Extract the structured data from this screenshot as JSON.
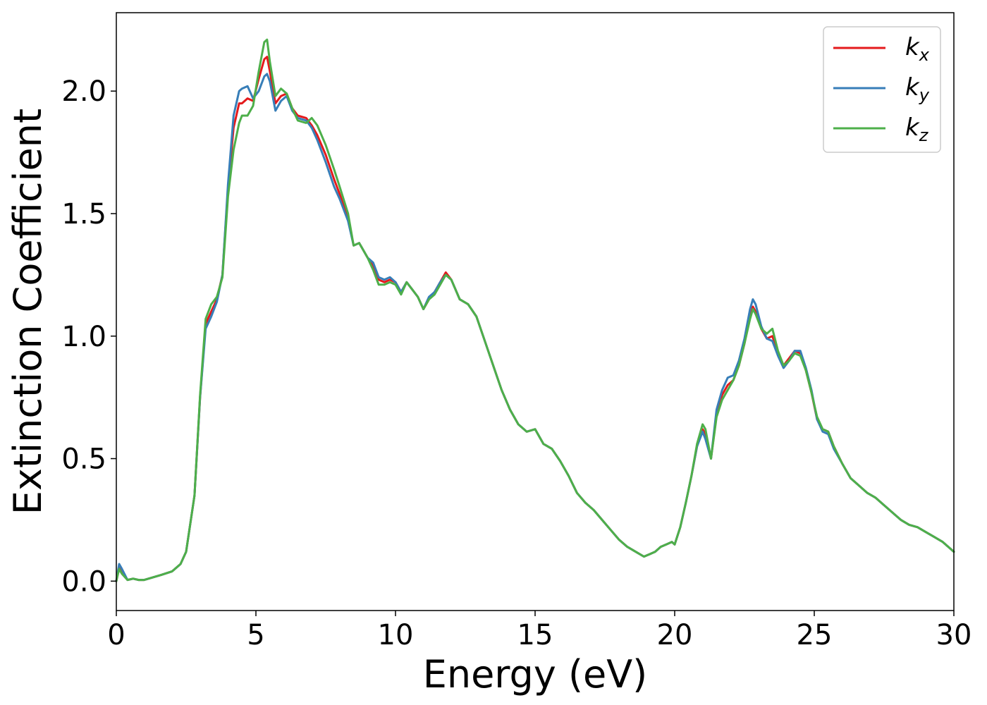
{
  "chart_data": {
    "type": "line",
    "title": "",
    "xlabel": "Energy (eV)",
    "ylabel": "Extinction Coefficient",
    "xlim": [
      0,
      30
    ],
    "ylim": [
      -0.12,
      2.32
    ],
    "xticks": [
      0,
      5,
      10,
      15,
      20,
      25,
      30
    ],
    "xtick_labels": [
      "0",
      "5",
      "10",
      "15",
      "20",
      "25",
      "30"
    ],
    "yticks": [
      0.0,
      0.5,
      1.0,
      1.5,
      2.0
    ],
    "ytick_labels": [
      "0.0",
      "0.5",
      "1.0",
      "1.5",
      "2.0"
    ],
    "grid": false,
    "legend_position": "top-right",
    "x": [
      0.0,
      0.1,
      0.2,
      0.4,
      0.6,
      0.8,
      1.0,
      1.3,
      1.6,
      2.0,
      2.3,
      2.5,
      2.8,
      3.0,
      3.2,
      3.4,
      3.6,
      3.8,
      4.0,
      4.2,
      4.4,
      4.5,
      4.7,
      4.9,
      5.1,
      5.3,
      5.4,
      5.5,
      5.7,
      5.9,
      6.1,
      6.3,
      6.5,
      6.8,
      7.0,
      7.2,
      7.5,
      7.8,
      8.0,
      8.3,
      8.5,
      8.7,
      8.8,
      9.0,
      9.2,
      9.4,
      9.6,
      9.8,
      10.0,
      10.2,
      10.4,
      10.6,
      10.8,
      11.0,
      11.2,
      11.4,
      11.6,
      11.8,
      12.0,
      12.3,
      12.6,
      12.9,
      13.2,
      13.5,
      13.8,
      14.1,
      14.4,
      14.7,
      15.0,
      15.3,
      15.6,
      15.9,
      16.2,
      16.5,
      16.8,
      17.1,
      17.4,
      17.7,
      18.0,
      18.3,
      18.6,
      18.9,
      19.1,
      19.3,
      19.5,
      19.7,
      19.9,
      20.0,
      20.2,
      20.4,
      20.6,
      20.8,
      21.0,
      21.1,
      21.3,
      21.5,
      21.7,
      21.9,
      22.1,
      22.3,
      22.5,
      22.7,
      22.8,
      22.9,
      23.1,
      23.3,
      23.5,
      23.7,
      23.9,
      24.1,
      24.3,
      24.5,
      24.7,
      24.9,
      25.1,
      25.3,
      25.5,
      25.7,
      26.0,
      26.3,
      26.6,
      26.9,
      27.2,
      27.5,
      27.8,
      28.1,
      28.4,
      28.7,
      29.0,
      29.3,
      29.6,
      30.0
    ],
    "series": [
      {
        "name": "k_x",
        "color": "#e41a1c",
        "values": [
          0.0,
          0.06,
          0.04,
          0.005,
          0.01,
          0.005,
          0.005,
          0.015,
          0.025,
          0.04,
          0.07,
          0.12,
          0.35,
          0.75,
          1.05,
          1.1,
          1.15,
          1.25,
          1.6,
          1.85,
          1.95,
          1.95,
          1.97,
          1.96,
          2.05,
          2.13,
          2.14,
          2.08,
          1.95,
          1.98,
          1.99,
          1.93,
          1.9,
          1.89,
          1.86,
          1.82,
          1.74,
          1.64,
          1.58,
          1.48,
          1.37,
          1.38,
          1.36,
          1.32,
          1.29,
          1.23,
          1.22,
          1.23,
          1.22,
          1.18,
          1.22,
          1.19,
          1.16,
          1.11,
          1.15,
          1.18,
          1.22,
          1.26,
          1.23,
          1.15,
          1.13,
          1.08,
          0.98,
          0.88,
          0.78,
          0.7,
          0.64,
          0.61,
          0.62,
          0.56,
          0.54,
          0.49,
          0.43,
          0.36,
          0.32,
          0.29,
          0.25,
          0.21,
          0.17,
          0.14,
          0.12,
          0.1,
          0.11,
          0.12,
          0.14,
          0.15,
          0.16,
          0.15,
          0.22,
          0.32,
          0.43,
          0.55,
          0.62,
          0.6,
          0.5,
          0.68,
          0.76,
          0.8,
          0.82,
          0.88,
          0.97,
          1.08,
          1.12,
          1.1,
          1.03,
          0.99,
          1.0,
          0.93,
          0.88,
          0.91,
          0.94,
          0.93,
          0.86,
          0.77,
          0.66,
          0.62,
          0.61,
          0.55,
          0.48,
          0.42,
          0.39,
          0.36,
          0.34,
          0.31,
          0.28,
          0.25,
          0.23,
          0.22,
          0.2,
          0.18,
          0.16,
          0.12
        ]
      },
      {
        "name": "k_y",
        "color": "#377eb8",
        "values": [
          0.0,
          0.07,
          0.05,
          0.005,
          0.01,
          0.005,
          0.005,
          0.015,
          0.025,
          0.04,
          0.07,
          0.12,
          0.35,
          0.75,
          1.03,
          1.08,
          1.14,
          1.25,
          1.62,
          1.9,
          2.0,
          2.01,
          2.02,
          1.97,
          2.0,
          2.06,
          2.07,
          2.04,
          1.92,
          1.96,
          1.98,
          1.92,
          1.89,
          1.88,
          1.85,
          1.8,
          1.71,
          1.61,
          1.56,
          1.47,
          1.37,
          1.38,
          1.36,
          1.32,
          1.3,
          1.24,
          1.23,
          1.24,
          1.22,
          1.18,
          1.22,
          1.19,
          1.16,
          1.11,
          1.16,
          1.18,
          1.22,
          1.25,
          1.23,
          1.15,
          1.13,
          1.08,
          0.98,
          0.88,
          0.78,
          0.7,
          0.64,
          0.61,
          0.62,
          0.56,
          0.54,
          0.49,
          0.43,
          0.36,
          0.32,
          0.29,
          0.25,
          0.21,
          0.17,
          0.14,
          0.12,
          0.1,
          0.11,
          0.12,
          0.14,
          0.15,
          0.16,
          0.15,
          0.22,
          0.32,
          0.43,
          0.55,
          0.61,
          0.58,
          0.5,
          0.7,
          0.78,
          0.83,
          0.84,
          0.9,
          0.99,
          1.11,
          1.15,
          1.13,
          1.04,
          0.99,
          0.98,
          0.92,
          0.87,
          0.9,
          0.94,
          0.94,
          0.87,
          0.78,
          0.66,
          0.61,
          0.6,
          0.54,
          0.48,
          0.42,
          0.39,
          0.36,
          0.34,
          0.31,
          0.28,
          0.25,
          0.23,
          0.22,
          0.2,
          0.18,
          0.16,
          0.12
        ]
      },
      {
        "name": "k_z",
        "color": "#4daf4a",
        "values": [
          0.0,
          0.05,
          0.03,
          0.005,
          0.01,
          0.005,
          0.005,
          0.015,
          0.025,
          0.04,
          0.07,
          0.12,
          0.35,
          0.76,
          1.07,
          1.13,
          1.16,
          1.24,
          1.57,
          1.76,
          1.87,
          1.9,
          1.9,
          1.94,
          2.08,
          2.2,
          2.21,
          2.12,
          1.98,
          2.01,
          1.99,
          1.93,
          1.88,
          1.87,
          1.89,
          1.86,
          1.78,
          1.68,
          1.61,
          1.5,
          1.37,
          1.38,
          1.36,
          1.32,
          1.27,
          1.21,
          1.21,
          1.22,
          1.21,
          1.17,
          1.22,
          1.19,
          1.16,
          1.11,
          1.15,
          1.17,
          1.21,
          1.25,
          1.23,
          1.15,
          1.13,
          1.08,
          0.98,
          0.88,
          0.78,
          0.7,
          0.64,
          0.61,
          0.62,
          0.56,
          0.54,
          0.49,
          0.43,
          0.36,
          0.32,
          0.29,
          0.25,
          0.21,
          0.17,
          0.14,
          0.12,
          0.1,
          0.11,
          0.12,
          0.14,
          0.15,
          0.16,
          0.15,
          0.22,
          0.32,
          0.43,
          0.56,
          0.64,
          0.62,
          0.5,
          0.67,
          0.74,
          0.78,
          0.82,
          0.88,
          0.97,
          1.07,
          1.11,
          1.09,
          1.03,
          1.01,
          1.03,
          0.94,
          0.88,
          0.9,
          0.93,
          0.92,
          0.86,
          0.77,
          0.67,
          0.62,
          0.61,
          0.55,
          0.48,
          0.42,
          0.39,
          0.36,
          0.34,
          0.31,
          0.28,
          0.25,
          0.23,
          0.22,
          0.2,
          0.18,
          0.16,
          0.12
        ]
      }
    ],
    "legend": [
      {
        "base": "k",
        "sub": "x",
        "color": "#e41a1c"
      },
      {
        "base": "k",
        "sub": "y",
        "color": "#377eb8"
      },
      {
        "base": "k",
        "sub": "z",
        "color": "#4daf4a"
      }
    ]
  }
}
